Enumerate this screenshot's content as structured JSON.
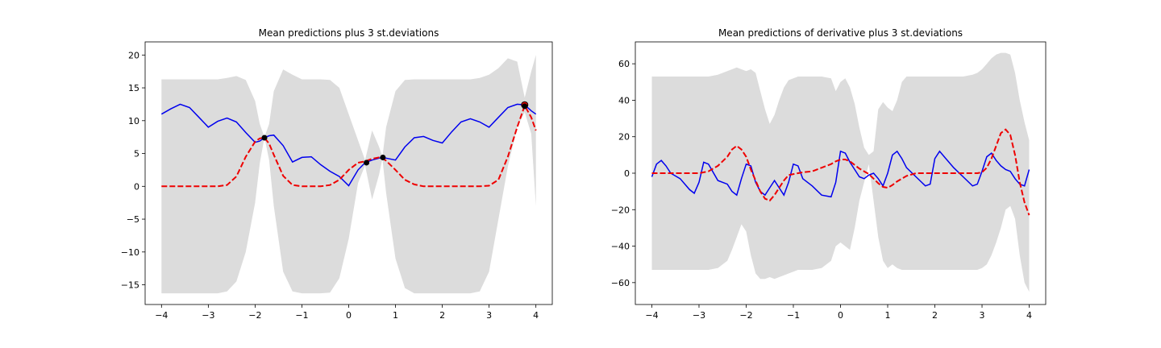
{
  "chart_data": [
    {
      "type": "line",
      "title": "Mean predictions plus 3 st.deviations",
      "xlim": [
        -4.35,
        4.35
      ],
      "ylim": [
        -18,
        22
      ],
      "xticks": [
        -4,
        -3,
        -2,
        -1,
        0,
        1,
        2,
        3,
        4
      ],
      "xtick_labels": [
        "−4",
        "−3",
        "−2",
        "−1",
        "0",
        "1",
        "2",
        "3",
        "4"
      ],
      "yticks": [
        -15,
        -10,
        -5,
        0,
        5,
        10,
        15,
        20
      ],
      "ytick_labels": [
        "−15",
        "−10",
        "−5",
        "0",
        "5",
        "10",
        "15",
        "20"
      ],
      "x": [
        -4.0,
        -3.8,
        -3.6,
        -3.4,
        -3.2,
        -3.0,
        -2.8,
        -2.6,
        -2.4,
        -2.2,
        -2.0,
        -1.9,
        -1.8,
        -1.7,
        -1.6,
        -1.4,
        -1.2,
        -1.0,
        -0.8,
        -0.6,
        -0.4,
        -0.2,
        0.0,
        0.2,
        0.35,
        0.5,
        0.65,
        0.72,
        0.8,
        1.0,
        1.2,
        1.4,
        1.6,
        1.8,
        2.0,
        2.2,
        2.4,
        2.6,
        2.8,
        3.0,
        3.2,
        3.4,
        3.6,
        3.76,
        3.9,
        4.0
      ],
      "series": [
        {
          "name": "",
          "role": "band",
          "upper": [
            16.3,
            16.3,
            16.3,
            16.3,
            16.3,
            16.3,
            16.3,
            16.5,
            16.8,
            16.2,
            13.0,
            9.5,
            7.5,
            9.5,
            14.5,
            17.8,
            17.0,
            16.3,
            16.3,
            16.3,
            16.2,
            15.0,
            11.0,
            7.0,
            4.0,
            8.5,
            6.0,
            4.5,
            9.0,
            14.5,
            16.2,
            16.3,
            16.3,
            16.3,
            16.3,
            16.3,
            16.3,
            16.3,
            16.5,
            17.0,
            18.0,
            19.5,
            19.0,
            13.5,
            17.5,
            20.0
          ],
          "lower": [
            -16.3,
            -16.3,
            -16.3,
            -16.3,
            -16.3,
            -16.3,
            -16.3,
            -16.0,
            -14.5,
            -10.0,
            -2.5,
            3.5,
            7.5,
            4.0,
            -3.0,
            -13.0,
            -16.0,
            -16.3,
            -16.3,
            -16.3,
            -16.2,
            -14.0,
            -8.0,
            0.5,
            3.2,
            -2.0,
            1.8,
            4.2,
            -1.0,
            -11.0,
            -15.5,
            -16.3,
            -16.3,
            -16.3,
            -16.3,
            -16.3,
            -16.3,
            -16.3,
            -16.0,
            -13.0,
            -5.0,
            3.0,
            9.0,
            11.3,
            8.0,
            -3.0
          ]
        },
        {
          "name": "",
          "role": "mean",
          "values": [
            11.0,
            11.8,
            12.5,
            12.0,
            10.5,
            9.0,
            9.9,
            10.4,
            9.8,
            8.2,
            6.7,
            6.9,
            7.4,
            7.7,
            7.8,
            6.2,
            3.7,
            4.4,
            4.5,
            3.3,
            2.3,
            1.5,
            0.1,
            2.5,
            3.6,
            4.0,
            4.3,
            4.4,
            4.3,
            4.0,
            6.0,
            7.4,
            7.6,
            7.0,
            6.6,
            8.3,
            9.8,
            10.3,
            9.8,
            9.0,
            10.5,
            12.0,
            12.5,
            12.4,
            11.5,
            11.0
          ]
        },
        {
          "name": "",
          "role": "truth",
          "values": [
            0.0,
            0.0,
            0.0,
            0.0,
            0.0,
            0.0,
            0.0,
            0.2,
            1.5,
            4.5,
            6.8,
            7.3,
            7.4,
            6.5,
            4.8,
            1.6,
            0.2,
            0.0,
            0.0,
            0.0,
            0.2,
            1.0,
            2.5,
            3.6,
            3.8,
            4.2,
            4.4,
            4.3,
            3.9,
            2.5,
            1.0,
            0.3,
            0.0,
            0.0,
            0.0,
            0.0,
            0.0,
            0.0,
            0.0,
            0.1,
            1.0,
            4.5,
            9.0,
            12.3,
            10.5,
            8.5
          ]
        }
      ],
      "points": [
        {
          "x": -1.8,
          "y": 7.4,
          "color": "#000000"
        },
        {
          "x": 0.38,
          "y": 3.6,
          "color": "#000000"
        },
        {
          "x": 0.73,
          "y": 4.4,
          "color": "#000000"
        },
        {
          "x": 3.76,
          "y": 12.4,
          "color": "#ee0000"
        },
        {
          "x": 3.76,
          "y": 12.2,
          "color": "#000000"
        }
      ]
    },
    {
      "type": "line",
      "title": "Mean predictions of derivative plus 3 st.deviations",
      "xlim": [
        -4.35,
        4.35
      ],
      "ylim": [
        -72,
        72
      ],
      "xticks": [
        -4,
        -3,
        -2,
        -1,
        0,
        1,
        2,
        3,
        4
      ],
      "xtick_labels": [
        "−4",
        "−3",
        "−2",
        "−1",
        "0",
        "1",
        "2",
        "3",
        "4"
      ],
      "yticks": [
        -60,
        -40,
        -20,
        0,
        20,
        40,
        60
      ],
      "ytick_labels": [
        "−60",
        "−40",
        "−20",
        "0",
        "20",
        "40",
        "60"
      ],
      "x": [
        -4.0,
        -3.9,
        -3.8,
        -3.7,
        -3.6,
        -3.4,
        -3.2,
        -3.1,
        -3.0,
        -2.9,
        -2.8,
        -2.6,
        -2.4,
        -2.3,
        -2.2,
        -2.1,
        -2.0,
        -1.9,
        -1.8,
        -1.7,
        -1.6,
        -1.5,
        -1.4,
        -1.3,
        -1.2,
        -1.1,
        -1.0,
        -0.9,
        -0.8,
        -0.6,
        -0.4,
        -0.2,
        -0.1,
        0.0,
        0.1,
        0.2,
        0.3,
        0.4,
        0.5,
        0.6,
        0.7,
        0.8,
        0.9,
        1.0,
        1.1,
        1.2,
        1.3,
        1.4,
        1.6,
        1.8,
        1.9,
        2.0,
        2.1,
        2.2,
        2.4,
        2.6,
        2.8,
        2.9,
        3.0,
        3.1,
        3.2,
        3.3,
        3.4,
        3.5,
        3.6,
        3.7,
        3.8,
        3.9,
        4.0
      ],
      "series": [
        {
          "name": "",
          "role": "band",
          "upper": [
            53,
            53,
            53,
            53,
            53,
            53,
            53,
            53,
            53,
            53,
            53,
            54,
            56,
            57,
            58,
            57,
            56,
            57,
            55,
            45,
            35,
            27,
            32,
            40,
            47,
            51,
            52,
            53,
            53,
            53,
            53,
            52,
            45,
            50,
            52,
            47,
            38,
            25,
            14,
            10,
            12,
            35,
            39,
            36,
            34,
            40,
            50,
            53,
            53,
            53,
            53,
            53,
            53,
            53,
            53,
            53,
            54,
            55,
            57,
            60,
            63,
            65,
            66,
            66,
            65,
            55,
            40,
            28,
            18
          ],
          "lower": [
            -53,
            -53,
            -53,
            -53,
            -53,
            -53,
            -53,
            -53,
            -53,
            -53,
            -53,
            -52,
            -48,
            -42,
            -35,
            -28,
            -32,
            -45,
            -55,
            -58,
            -58,
            -57,
            -58,
            -57,
            -56,
            -55,
            -54,
            -53,
            -53,
            -53,
            -52,
            -48,
            -40,
            -38,
            -40,
            -42,
            -30,
            -15,
            -5,
            5,
            -15,
            -35,
            -48,
            -52,
            -50,
            -52,
            -53,
            -53,
            -53,
            -53,
            -53,
            -53,
            -53,
            -53,
            -53,
            -53,
            -53,
            -53,
            -52,
            -50,
            -45,
            -38,
            -30,
            -20,
            -18,
            -25,
            -45,
            -60,
            -65
          ]
        },
        {
          "name": "",
          "role": "mean",
          "values": [
            -2,
            5,
            7,
            4,
            0,
            -3,
            -9,
            -11,
            -5,
            6,
            5,
            -4,
            -6,
            -10,
            -12,
            -3,
            5,
            4,
            -5,
            -10,
            -12,
            -8,
            -4,
            -8,
            -12,
            -5,
            5,
            4,
            -3,
            -7,
            -12,
            -13,
            -5,
            12,
            11,
            6,
            2,
            -2,
            -3,
            -1,
            0,
            -3,
            -7,
            0,
            10,
            12,
            8,
            3,
            -2,
            -7,
            -6,
            8,
            12,
            9,
            3,
            -2,
            -7,
            -6,
            1,
            9,
            11,
            7,
            4,
            2,
            1,
            -3,
            -6,
            -7,
            2
          ]
        },
        {
          "name": "",
          "role": "truth",
          "values": [
            0,
            0,
            0,
            0,
            0,
            0,
            0,
            0,
            0,
            0.5,
            1,
            4,
            9,
            13,
            15,
            13,
            9,
            2,
            -4,
            -10,
            -14,
            -15,
            -12,
            -8,
            -4,
            -1,
            -0.5,
            0,
            0.5,
            1,
            3,
            5,
            6.5,
            7.5,
            7.5,
            6.5,
            4.5,
            2.5,
            1,
            -0.5,
            -3,
            -5.5,
            -7.5,
            -8,
            -6.5,
            -4.5,
            -3,
            -1.5,
            0,
            0,
            0,
            0,
            0,
            0,
            0,
            0,
            0,
            0,
            0.5,
            3,
            8,
            15,
            22,
            24,
            21,
            10,
            -5,
            -16,
            -23
          ]
        }
      ],
      "points": []
    }
  ]
}
